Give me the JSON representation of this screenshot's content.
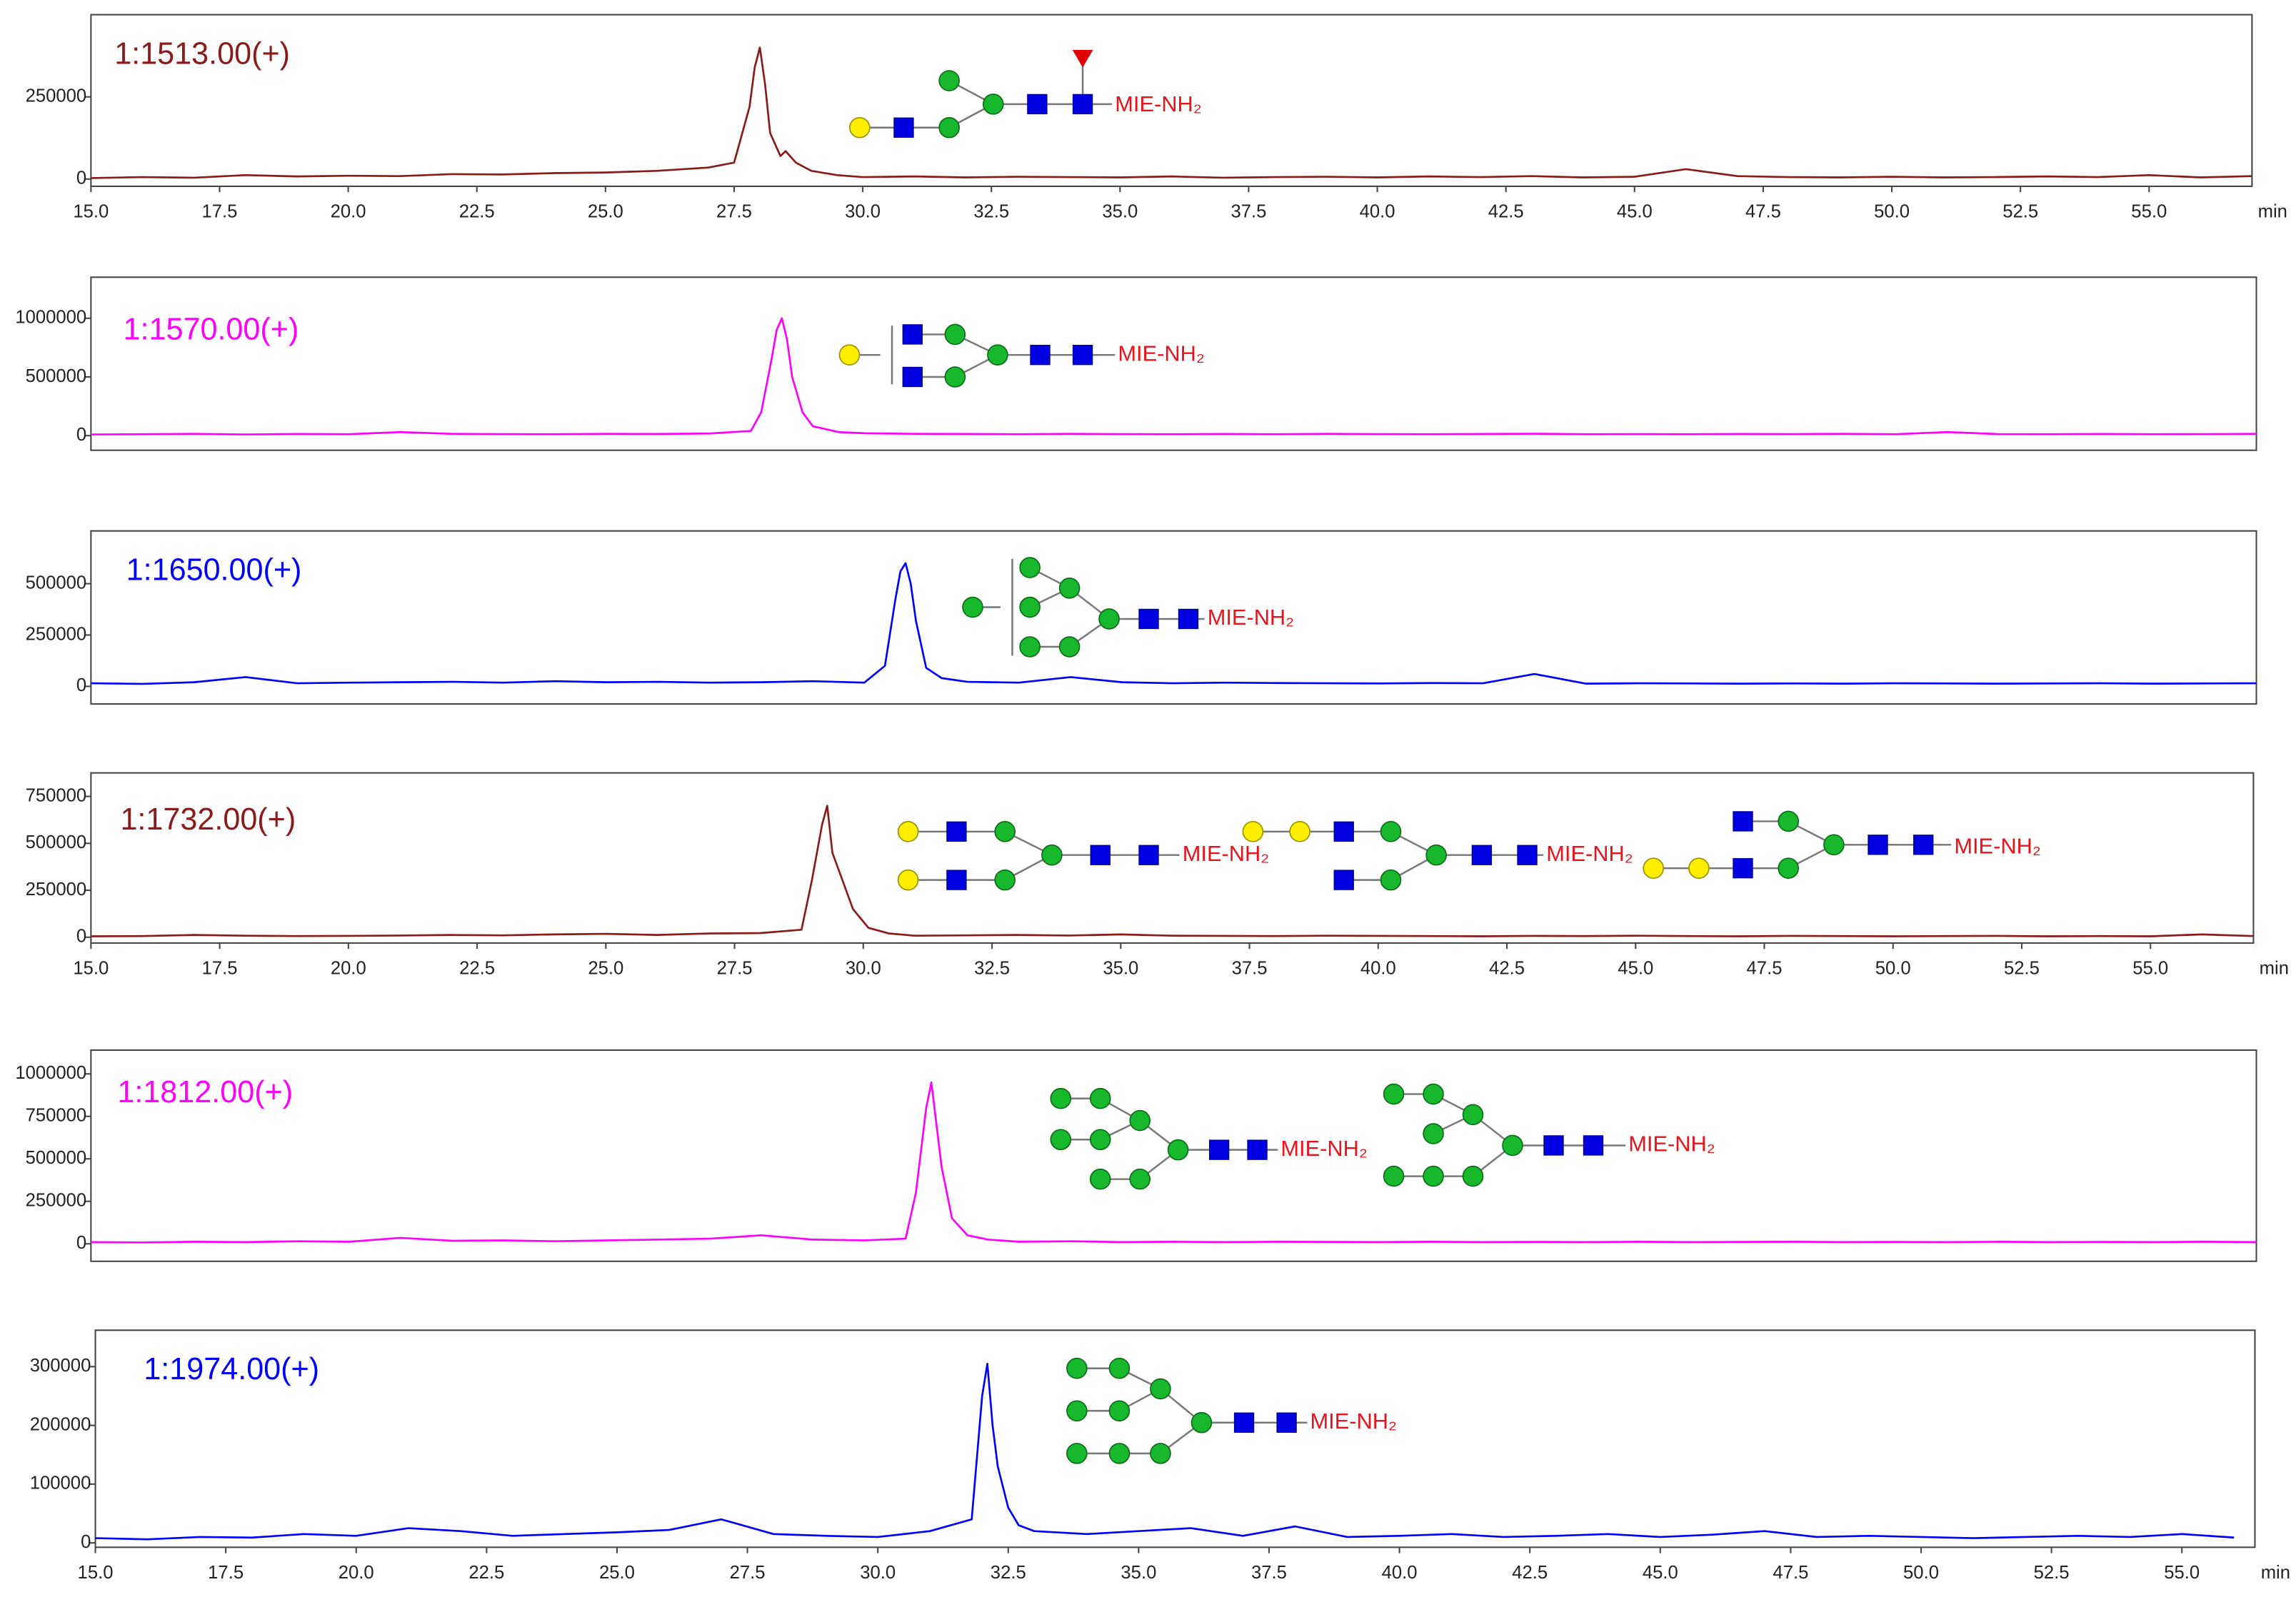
{
  "chart_data": [
    {
      "type": "line",
      "title": "1:1513.00(+)",
      "x_label": "min",
      "annotations": [
        "MIE-NH₂"
      ],
      "x": [
        15,
        16,
        17,
        18,
        19,
        20,
        21,
        22,
        23,
        24,
        25,
        26,
        27,
        27.5,
        27.8,
        27.9,
        28,
        28.1,
        28.2,
        28.4,
        28.5,
        28.7,
        29,
        29.5,
        30,
        31,
        32,
        33,
        34,
        35,
        36,
        37,
        38,
        39,
        40,
        41,
        42,
        43,
        44,
        45,
        46,
        47,
        48,
        49,
        50,
        51,
        52,
        53,
        54,
        55,
        56,
        57
      ],
      "series": [
        {
          "color": "#8b1a1a",
          "values": [
            3000,
            6000,
            4000,
            12000,
            8000,
            10000,
            9000,
            15000,
            14000,
            18000,
            20000,
            25000,
            35000,
            50000,
            220000,
            340000,
            400000,
            290000,
            140000,
            70000,
            85000,
            50000,
            25000,
            12000,
            6000,
            8000,
            5000,
            7000,
            6000,
            5000,
            8000,
            4000,
            6000,
            7000,
            5000,
            8000,
            6000,
            9000,
            5000,
            7000,
            30000,
            9000,
            6000,
            5000,
            7000,
            5000,
            6000,
            8000,
            6000,
            12000,
            5000,
            9000
          ]
        }
      ],
      "xlim": [
        15,
        57
      ],
      "ylim": [
        -22000,
        500000
      ],
      "yticks": [
        0,
        250000
      ],
      "xticks": [
        {
          "value": 15,
          "label": "15.0"
        },
        {
          "value": 17.5,
          "label": "17.5"
        },
        {
          "value": 20,
          "label": "20.0"
        },
        {
          "value": 22.5,
          "label": "22.5"
        },
        {
          "value": 25,
          "label": "25.0"
        },
        {
          "value": 27.5,
          "label": "27.5"
        },
        {
          "value": 30,
          "label": "30.0"
        },
        {
          "value": 32.5,
          "label": "32.5"
        },
        {
          "value": 35,
          "label": "35.0"
        },
        {
          "value": 37.5,
          "label": "37.5"
        },
        {
          "value": 40,
          "label": "40.0"
        },
        {
          "value": 42.5,
          "label": "42.5"
        },
        {
          "value": 45,
          "label": "45.0"
        },
        {
          "value": 47.5,
          "label": "47.5"
        },
        {
          "value": 50,
          "label": "50.0"
        },
        {
          "value": 52.5,
          "label": "52.5"
        },
        {
          "value": 55,
          "label": "55.0"
        }
      ]
    },
    {
      "type": "line",
      "title": "1:1570.00(+)",
      "annotations": [
        "MIE-NH₂"
      ],
      "x": [
        15,
        16,
        17,
        18,
        19,
        20,
        21,
        22,
        23,
        24,
        25,
        26,
        27,
        27.8,
        28,
        28.2,
        28.3,
        28.4,
        28.5,
        28.6,
        28.8,
        29,
        29.5,
        30,
        31,
        32,
        33,
        34,
        35,
        36,
        37,
        38,
        39,
        40,
        41,
        42,
        43,
        44,
        45,
        46,
        47,
        48,
        49,
        50,
        51,
        52,
        53,
        54,
        55,
        56,
        57
      ],
      "series": [
        {
          "color": "#ff00ff",
          "values": [
            10000,
            12000,
            15000,
            10000,
            14000,
            12000,
            30000,
            15000,
            13000,
            12000,
            15000,
            14000,
            18000,
            40000,
            200000,
            650000,
            900000,
            1000000,
            820000,
            500000,
            200000,
            80000,
            30000,
            20000,
            15000,
            14000,
            12000,
            15000,
            13000,
            12000,
            14000,
            12000,
            15000,
            13000,
            12000,
            14000,
            16000,
            12000,
            13000,
            12000,
            14000,
            13000,
            15000,
            12000,
            30000,
            13000,
            12000,
            14000,
            12000,
            13000,
            15000
          ]
        }
      ],
      "xlim": [
        15,
        57
      ],
      "ylim": [
        -125000,
        1350000
      ],
      "yticks": [
        0,
        500000,
        1000000
      ]
    },
    {
      "type": "line",
      "title": "1:1650.00(+)",
      "annotations": [
        "MIE-NH₂"
      ],
      "x": [
        15,
        16,
        17,
        18,
        19,
        20,
        21,
        22,
        23,
        24,
        25,
        26,
        27,
        28,
        29,
        30,
        30.4,
        30.6,
        30.7,
        30.8,
        30.9,
        31,
        31.2,
        31.5,
        32,
        33,
        34,
        35,
        36,
        37,
        38,
        39,
        40,
        41,
        42,
        43,
        44,
        45,
        46,
        47,
        48,
        49,
        50,
        51,
        52,
        53,
        54,
        55,
        56,
        57
      ],
      "series": [
        {
          "color": "#0000ff",
          "values": [
            15000,
            12000,
            20000,
            45000,
            15000,
            18000,
            20000,
            22000,
            18000,
            25000,
            20000,
            22000,
            18000,
            20000,
            25000,
            18000,
            100000,
            420000,
            560000,
            600000,
            500000,
            320000,
            90000,
            40000,
            22000,
            18000,
            45000,
            20000,
            15000,
            18000,
            16000,
            15000,
            14000,
            16000,
            15000,
            60000,
            13000,
            15000,
            14000,
            13000,
            14000,
            13000,
            15000,
            14000,
            13000,
            14000,
            15000,
            13000,
            14000,
            15000
          ]
        }
      ],
      "xlim": [
        15,
        57
      ],
      "ylim": [
        -86000,
        757000
      ],
      "yticks": [
        0,
        250000,
        500000
      ]
    },
    {
      "type": "line",
      "title": "1:1732.00(+)",
      "x_label": "min",
      "annotations": [
        "MIE-NH₂",
        "MIE-NH₂",
        "MIE-NH₂"
      ],
      "x": [
        15,
        16,
        17,
        18,
        19,
        20,
        21,
        22,
        23,
        24,
        25,
        26,
        27,
        28,
        28.8,
        29,
        29.2,
        29.3,
        29.4,
        29.6,
        29.8,
        30.1,
        30.5,
        31,
        32,
        33,
        34,
        35,
        36,
        37,
        38,
        39,
        40,
        41,
        42,
        43,
        44,
        45,
        46,
        47,
        48,
        49,
        50,
        51,
        52,
        53,
        54,
        55,
        56,
        57
      ],
      "series": [
        {
          "color": "#8b1a1a",
          "values": [
            5000,
            6000,
            12000,
            8000,
            6000,
            7000,
            9000,
            12000,
            10000,
            15000,
            18000,
            12000,
            20000,
            22000,
            40000,
            300000,
            600000,
            700000,
            450000,
            300000,
            150000,
            50000,
            20000,
            8000,
            10000,
            12000,
            9000,
            15000,
            8000,
            7000,
            6000,
            8000,
            7000,
            6000,
            5000,
            7000,
            6000,
            8000,
            6000,
            5000,
            7000,
            6000,
            5000,
            6000,
            7000,
            5000,
            6000,
            5000,
            15000,
            6000
          ]
        }
      ],
      "xlim": [
        15,
        57
      ],
      "ylim": [
        -31000,
        875000
      ],
      "yticks": [
        0,
        250000,
        500000,
        750000
      ],
      "xticks": [
        {
          "value": 15,
          "label": "15.0"
        },
        {
          "value": 17.5,
          "label": "17.5"
        },
        {
          "value": 20,
          "label": "20.0"
        },
        {
          "value": 22.5,
          "label": "22.5"
        },
        {
          "value": 25,
          "label": "25.0"
        },
        {
          "value": 27.5,
          "label": "27.5"
        },
        {
          "value": 30,
          "label": "30.0"
        },
        {
          "value": 32.5,
          "label": "32.5"
        },
        {
          "value": 35,
          "label": "35.0"
        },
        {
          "value": 37.5,
          "label": "37.5"
        },
        {
          "value": 40,
          "label": "40.0"
        },
        {
          "value": 42.5,
          "label": "42.5"
        },
        {
          "value": 45,
          "label": "45.0"
        },
        {
          "value": 47.5,
          "label": "47.5"
        },
        {
          "value": 50,
          "label": "50.0"
        },
        {
          "value": 52.5,
          "label": "52.5"
        },
        {
          "value": 55,
          "label": "55.0"
        }
      ]
    },
    {
      "type": "line",
      "title": "1:1812.00(+)",
      "annotations": [
        "MIE-NH₂",
        "MIE-NH₂"
      ],
      "x": [
        15,
        16,
        17,
        18,
        19,
        20,
        21,
        22,
        23,
        24,
        25,
        26,
        27,
        28,
        29,
        30,
        30.8,
        31,
        31.2,
        31.3,
        31.4,
        31.5,
        31.7,
        32,
        32.4,
        33,
        34,
        35,
        36,
        37,
        38,
        39,
        40,
        41,
        42,
        43,
        44,
        45,
        46,
        47,
        48,
        49,
        50,
        51,
        52,
        53,
        54,
        55,
        56,
        57
      ],
      "series": [
        {
          "color": "#ff00ff",
          "values": [
            10000,
            8000,
            12000,
            10000,
            15000,
            12000,
            35000,
            18000,
            20000,
            15000,
            20000,
            25000,
            30000,
            50000,
            25000,
            20000,
            30000,
            300000,
            800000,
            950000,
            700000,
            450000,
            150000,
            50000,
            25000,
            12000,
            15000,
            10000,
            12000,
            10000,
            12000,
            11000,
            10000,
            12000,
            10000,
            11000,
            10000,
            12000,
            10000,
            11000,
            12000,
            10000,
            11000,
            10000,
            12000,
            10000,
            11000,
            10000,
            12000,
            10000
          ]
        }
      ],
      "xlim": [
        15,
        57
      ],
      "ylim": [
        -103000,
        1140000
      ],
      "yticks": [
        0,
        250000,
        500000,
        750000,
        1000000
      ]
    },
    {
      "type": "line",
      "title": "1:1974.00(+)",
      "x_label": "min",
      "annotations": [
        "MIE-NH₂"
      ],
      "x": [
        15,
        16,
        17,
        18,
        19,
        20,
        21,
        22,
        23,
        24,
        25,
        26,
        27,
        28,
        29,
        30,
        31,
        31.8,
        32,
        32.1,
        32.2,
        32.3,
        32.5,
        32.7,
        33,
        34,
        35,
        36,
        37,
        38,
        39,
        40,
        41,
        42,
        43,
        44,
        45,
        46,
        47,
        48,
        49,
        50,
        51,
        52,
        53,
        54,
        55,
        56
      ],
      "series": [
        {
          "color": "#0000ff",
          "values": [
            8000,
            6000,
            10000,
            9000,
            15000,
            12000,
            25000,
            20000,
            12000,
            15000,
            18000,
            22000,
            40000,
            15000,
            12000,
            10000,
            20000,
            40000,
            250000,
            305000,
            200000,
            130000,
            60000,
            30000,
            20000,
            15000,
            20000,
            25000,
            12000,
            28000,
            10000,
            12000,
            15000,
            10000,
            12000,
            15000,
            10000,
            14000,
            20000,
            10000,
            12000,
            10000,
            8000,
            10000,
            12000,
            10000,
            15000,
            9000
          ]
        }
      ],
      "xlim": [
        15,
        56.4
      ],
      "ylim": [
        -7500,
        362000
      ],
      "yticks": [
        0,
        100000,
        200000,
        300000
      ],
      "xticks": [
        {
          "value": 15,
          "label": "15.0"
        },
        {
          "value": 17.5,
          "label": "17.5"
        },
        {
          "value": 20,
          "label": "20.0"
        },
        {
          "value": 22.5,
          "label": "22.5"
        },
        {
          "value": 25,
          "label": "25.0"
        },
        {
          "value": 27.5,
          "label": "27.5"
        },
        {
          "value": 30,
          "label": "30.0"
        },
        {
          "value": 32.5,
          "label": "32.5"
        },
        {
          "value": 35,
          "label": "35.0"
        },
        {
          "value": 37.5,
          "label": "37.5"
        },
        {
          "value": 40,
          "label": "40.0"
        },
        {
          "value": 42.5,
          "label": "42.5"
        },
        {
          "value": 45,
          "label": "45.0"
        },
        {
          "value": 47.5,
          "label": "47.5"
        },
        {
          "value": 50,
          "label": "50.0"
        },
        {
          "value": 52.5,
          "label": "52.5"
        },
        {
          "value": 55,
          "label": "55.0"
        }
      ]
    }
  ]
}
